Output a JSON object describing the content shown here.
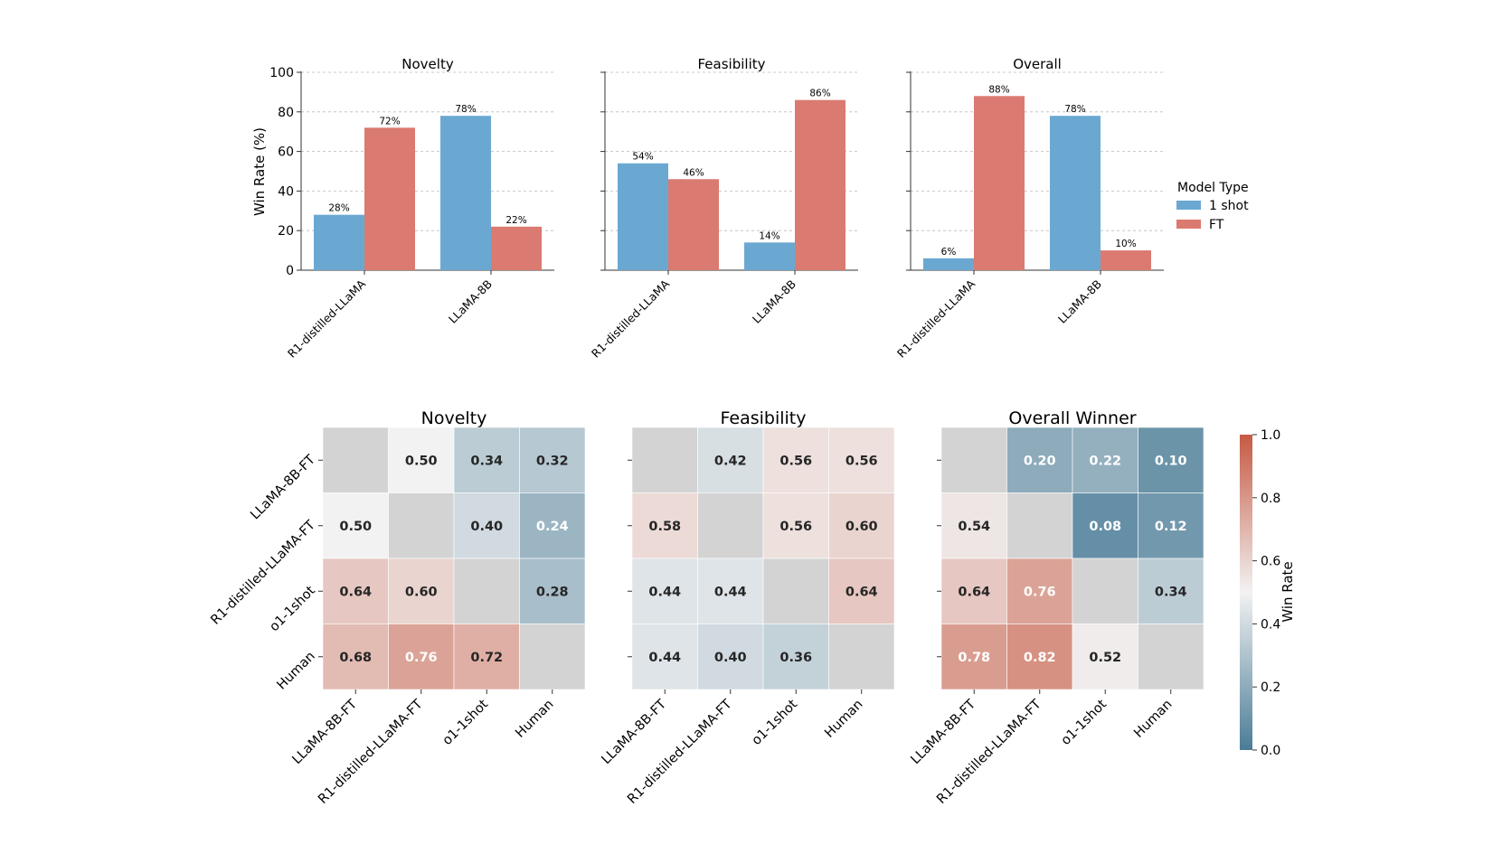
{
  "chart_data": [
    {
      "type": "bar",
      "title": "Novelty",
      "ylabel": "Win Rate (%)",
      "ylim": [
        0,
        100
      ],
      "yticks": [
        "0",
        "20",
        "40",
        "60",
        "80",
        "100"
      ],
      "grid": true,
      "categories": [
        "R1-distilled-LLaMA",
        "LLaMA-8B"
      ],
      "series": [
        {
          "name": "1 shot",
          "values": [
            28,
            78
          ],
          "labels": [
            "28%",
            "78%"
          ]
        },
        {
          "name": "FT",
          "values": [
            72,
            22
          ],
          "labels": [
            "72%",
            "22%"
          ]
        }
      ]
    },
    {
      "type": "bar",
      "title": "Feasibility",
      "ylim": [
        0,
        100
      ],
      "grid": true,
      "categories": [
        "R1-distilled-LLaMA",
        "LLaMA-8B"
      ],
      "series": [
        {
          "name": "1 shot",
          "values": [
            54,
            14
          ],
          "labels": [
            "54%",
            "14%"
          ]
        },
        {
          "name": "FT",
          "values": [
            46,
            86
          ],
          "labels": [
            "46%",
            "86%"
          ]
        }
      ]
    },
    {
      "type": "bar",
      "title": "Overall",
      "ylim": [
        0,
        100
      ],
      "grid": true,
      "categories": [
        "R1-distilled-LLaMA",
        "LLaMA-8B"
      ],
      "series": [
        {
          "name": "1 shot",
          "values": [
            6,
            78
          ],
          "labels": [
            "6%",
            "78%"
          ]
        },
        {
          "name": "FT",
          "values": [
            88,
            10
          ],
          "labels": [
            "88%",
            "10%"
          ]
        }
      ]
    },
    {
      "type": "heatmap",
      "title": "Novelty",
      "rows": [
        "LLaMA-8B-FT",
        "R1-distilled-LLaMA-FT",
        "o1-1shot",
        "Human"
      ],
      "cols": [
        "LLaMA-8B-FT",
        "R1-distilled-LLaMA-FT",
        "o1-1shot",
        "Human"
      ],
      "values": [
        [
          null,
          0.5,
          0.34,
          0.32
        ],
        [
          0.5,
          null,
          0.4,
          0.24
        ],
        [
          0.64,
          0.6,
          null,
          0.28
        ],
        [
          0.68,
          0.76,
          0.72,
          null
        ]
      ],
      "labels": [
        [
          "",
          "0.50",
          "0.34",
          "0.32"
        ],
        [
          "0.50",
          "",
          "0.40",
          "0.24"
        ],
        [
          "0.64",
          "0.60",
          "",
          "0.28"
        ],
        [
          "0.68",
          "0.76",
          "0.72",
          ""
        ]
      ]
    },
    {
      "type": "heatmap",
      "title": "Feasibility",
      "rows": [
        "LLaMA-8B-FT",
        "R1-distilled-LLaMA-FT",
        "o1-1shot",
        "Human"
      ],
      "cols": [
        "LLaMA-8B-FT",
        "R1-distilled-LLaMA-FT",
        "o1-1shot",
        "Human"
      ],
      "values": [
        [
          null,
          0.42,
          0.56,
          0.56
        ],
        [
          0.58,
          null,
          0.56,
          0.6
        ],
        [
          0.44,
          0.44,
          null,
          0.64
        ],
        [
          0.44,
          0.4,
          0.36,
          null
        ]
      ],
      "labels": [
        [
          "",
          "0.42",
          "0.56",
          "0.56"
        ],
        [
          "0.58",
          "",
          "0.56",
          "0.60"
        ],
        [
          "0.44",
          "0.44",
          "",
          "0.64"
        ],
        [
          "0.44",
          "0.40",
          "0.36",
          ""
        ]
      ]
    },
    {
      "type": "heatmap",
      "title": "Overall Winner",
      "rows": [
        "LLaMA-8B-FT",
        "R1-distilled-LLaMA-FT",
        "o1-1shot",
        "Human"
      ],
      "cols": [
        "LLaMA-8B-FT",
        "R1-distilled-LLaMA-FT",
        "o1-1shot",
        "Human"
      ],
      "values": [
        [
          null,
          0.2,
          0.22,
          0.1
        ],
        [
          0.54,
          null,
          0.08,
          0.12
        ],
        [
          0.64,
          0.76,
          null,
          0.34
        ],
        [
          0.78,
          0.82,
          0.52,
          null
        ]
      ],
      "labels": [
        [
          "",
          "0.20",
          "0.22",
          "0.10"
        ],
        [
          "0.54",
          "",
          "0.08",
          "0.12"
        ],
        [
          "0.64",
          "0.76",
          "",
          "0.34"
        ],
        [
          "0.78",
          "0.82",
          "0.52",
          ""
        ]
      ]
    }
  ],
  "legend": {
    "title": "Model Type",
    "entries": [
      "1 shot",
      "FT"
    ],
    "placement": "right"
  },
  "colorbar": {
    "label": "Win Rate",
    "range": [
      0.0,
      1.0
    ],
    "ticks": [
      "0.0",
      "0.2",
      "0.4",
      "0.6",
      "0.8",
      "1.0"
    ]
  },
  "colors": {
    "one_shot": "#6aa8d2",
    "ft": "#db7a70",
    "cmap_low": "#4a7c97",
    "cmap_mid": "#f2f2f2",
    "cmap_high": "#c65a43",
    "diagonal": "#d3d3d3",
    "grid": "#bbbbbb"
  }
}
